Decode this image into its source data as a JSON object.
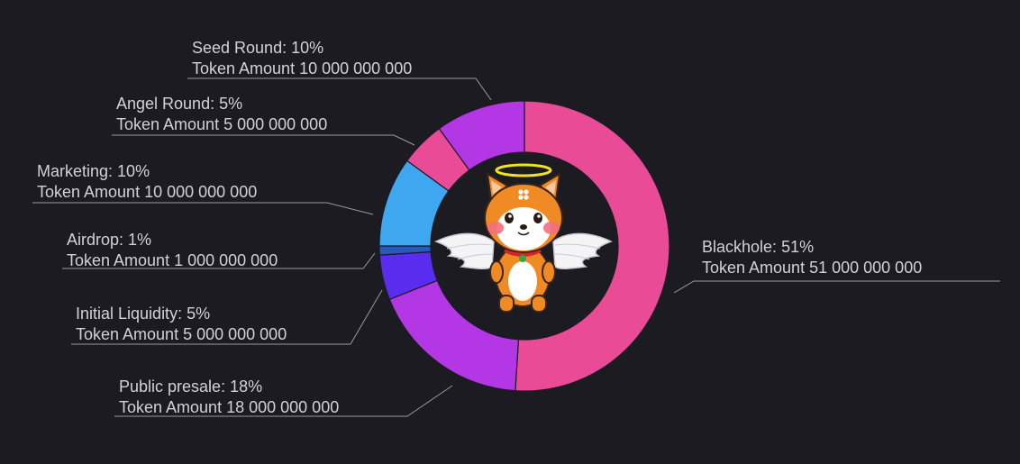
{
  "chart_data": {
    "type": "pie",
    "title": "",
    "slices": [
      {
        "name": "Blackhole",
        "percent_label": "51%",
        "value": 51,
        "amount_label": "Token Amount",
        "amount": "51 000 000 000",
        "color": "#e94b96"
      },
      {
        "name": "Public presale",
        "percent_label": "18%",
        "value": 18,
        "amount_label": "Token Amount",
        "amount": "18 000 000 000",
        "color": "#b437e6"
      },
      {
        "name": "Initial Liquidity",
        "percent_label": "5%",
        "value": 5,
        "amount_label": "Token Amount",
        "amount": "5 000 000 000",
        "color": "#5a2cf0"
      },
      {
        "name": "Airdrop",
        "percent_label": "1%",
        "value": 1,
        "amount_label": "Token Amount",
        "amount": "1 000 000 000",
        "color": "#2a5ab8"
      },
      {
        "name": "Marketing",
        "percent_label": "10%",
        "value": 10,
        "amount_label": "Token Amount",
        "amount": "10 000 000 000",
        "color": "#3fa6f0"
      },
      {
        "name": "Angel Round",
        "percent_label": "5%",
        "value": 5,
        "amount_label": "Token Amount",
        "amount": "5 000 000 000",
        "color": "#e94b96"
      },
      {
        "name": "Seed Round",
        "percent_label": "10%",
        "value": 10,
        "amount_label": "Token Amount",
        "amount": "10 000 000 000",
        "color": "#b437e6"
      }
    ],
    "legend": "none",
    "style": "donut",
    "center_image": "angel-shiba-mascot"
  }
}
